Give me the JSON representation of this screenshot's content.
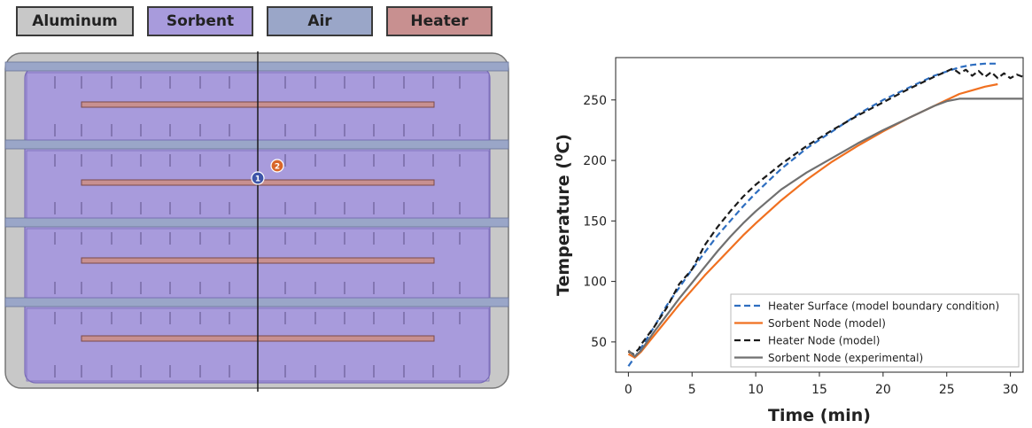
{
  "materials": [
    {
      "label": "Aluminum",
      "color": "#c8c8c8"
    },
    {
      "label": "Sorbent",
      "color": "#a89bdc"
    },
    {
      "label": "Air",
      "color": "#9aa6c8"
    },
    {
      "label": "Heater",
      "color": "#c89090"
    }
  ],
  "diagram": {
    "node_labels": [
      "1",
      "2"
    ],
    "node_colors": [
      "#3d55a8",
      "#d8662a"
    ],
    "aluminum_color": "#c8c8c8",
    "sorbent_color": "#a89bdc",
    "air_color": "#9aa6c8",
    "heater_color": "#c89090"
  },
  "chart_data": {
    "type": "line",
    "title": "",
    "xlabel": "Time (min)",
    "ylabel": "Temperature (°C)",
    "ylabel_prefix": "Temperature (",
    "ylabel_sup": "0",
    "ylabel_suffix": "C)",
    "xlim": [
      -1,
      31
    ],
    "ylim": [
      25,
      285
    ],
    "xticks": [
      0,
      5,
      10,
      15,
      20,
      25,
      30
    ],
    "yticks": [
      50,
      100,
      150,
      200,
      250
    ],
    "grid": false,
    "legend_position": "bottom-right",
    "series": [
      {
        "name": "Heater Surface (model boundary condition)",
        "color": "#2e6ec0",
        "dash": "dashed",
        "x": [
          0,
          1,
          2,
          3,
          4,
          5,
          6,
          7,
          8,
          9,
          10,
          12,
          14,
          16,
          18,
          20,
          22,
          24,
          26,
          27,
          28,
          29
        ],
        "y": [
          30,
          45,
          62,
          80,
          95,
          110,
          124,
          138,
          150,
          162,
          173,
          193,
          210,
          224,
          238,
          250,
          260,
          270,
          277,
          279,
          280,
          280
        ]
      },
      {
        "name": "Sorbent Node (model)",
        "color": "#f07020",
        "dash": "solid",
        "x": [
          0,
          0.5,
          1,
          2,
          3,
          4,
          5,
          6,
          7,
          8,
          9,
          10,
          12,
          14,
          16,
          18,
          20,
          22,
          24,
          25,
          26,
          27,
          28,
          29
        ],
        "y": [
          40,
          37,
          42,
          55,
          68,
          81,
          93,
          105,
          116,
          127,
          138,
          148,
          167,
          184,
          199,
          212,
          224,
          235,
          245,
          250,
          255,
          258,
          261,
          263
        ]
      },
      {
        "name": "Heater Node (model)",
        "color": "#1a1a1a",
        "dash": "dashed",
        "x": [
          0,
          0.4,
          0.8,
          1,
          2,
          3,
          4,
          5,
          6,
          7,
          8,
          9,
          10,
          12,
          14,
          16,
          18,
          20,
          22,
          24,
          25.5,
          26,
          26.5,
          27,
          27.5,
          28,
          28.5,
          29,
          29.5,
          30,
          30.5,
          31
        ],
        "y": [
          42,
          40,
          44,
          48,
          62,
          78,
          98,
          110,
          130,
          145,
          158,
          170,
          180,
          197,
          212,
          225,
          237,
          248,
          259,
          269,
          276,
          272,
          275,
          270,
          274,
          269,
          273,
          268,
          272,
          268,
          271,
          269
        ]
      },
      {
        "name": "Sorbent Node (experimental)",
        "color": "#707070",
        "dash": "solid",
        "x": [
          0,
          0.5,
          1,
          2,
          3,
          4,
          5,
          6,
          7,
          8,
          9,
          10,
          12,
          14,
          16,
          18,
          20,
          22,
          24,
          25,
          26,
          27,
          28,
          29,
          30,
          31
        ],
        "y": [
          43,
          38,
          43,
          58,
          72,
          86,
          99,
          112,
          125,
          137,
          148,
          158,
          176,
          190,
          202,
          214,
          225,
          235,
          245,
          249,
          251,
          251,
          251,
          251,
          251,
          251
        ]
      }
    ]
  }
}
